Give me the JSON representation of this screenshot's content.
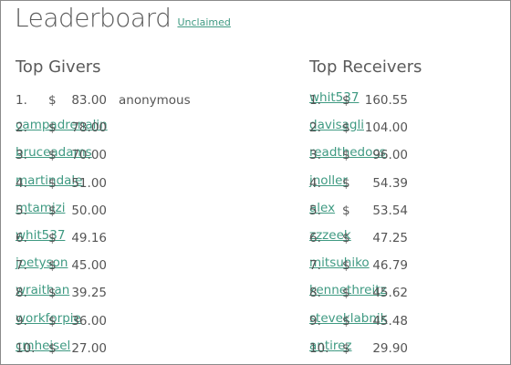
{
  "header": {
    "title": "Leaderboard",
    "unclaimed_label": "Unclaimed"
  },
  "givers": {
    "title": "Top Givers",
    "currency": "$",
    "rows": [
      {
        "rank": "1.",
        "amount": "83.00",
        "name": "anonymous",
        "is_link": false
      },
      {
        "rank": "2.",
        "amount": "78.00",
        "name": "campadrenalin",
        "is_link": true
      },
      {
        "rank": "3.",
        "amount": "70.00",
        "name": "bruceadams",
        "is_link": true
      },
      {
        "rank": "4.",
        "amount": "51.00",
        "name": "martindale",
        "is_link": true
      },
      {
        "rank": "5.",
        "amount": "50.00",
        "name": "mtamizi",
        "is_link": true
      },
      {
        "rank": "6.",
        "amount": "49.16",
        "name": "whit537",
        "is_link": true
      },
      {
        "rank": "7.",
        "amount": "45.00",
        "name": "joetyson",
        "is_link": true
      },
      {
        "rank": "8.",
        "amount": "39.25",
        "name": "wraithan",
        "is_link": true
      },
      {
        "rank": "9.",
        "amount": "36.00",
        "name": "workforpie",
        "is_link": true
      },
      {
        "rank": "10.",
        "amount": "27.00",
        "name": "cmheisel",
        "is_link": true
      }
    ]
  },
  "receivers": {
    "title": "Top Receivers",
    "currency": "$",
    "rows": [
      {
        "rank": "1.",
        "amount": "160.55",
        "name": "whit537",
        "is_link": true
      },
      {
        "rank": "2.",
        "amount": "104.00",
        "name": "davisagli",
        "is_link": true
      },
      {
        "rank": "3.",
        "amount": "96.00",
        "name": "readthedocs",
        "is_link": true
      },
      {
        "rank": "4.",
        "amount": "54.39",
        "name": "jnoller",
        "is_link": true
      },
      {
        "rank": "5.",
        "amount": "53.54",
        "name": "alex",
        "is_link": true
      },
      {
        "rank": "6.",
        "amount": "47.25",
        "name": "zzzeek",
        "is_link": true
      },
      {
        "rank": "7.",
        "amount": "46.79",
        "name": "mitsuhiko",
        "is_link": true
      },
      {
        "rank": "8.",
        "amount": "45.62",
        "name": "kennethreitz",
        "is_link": true
      },
      {
        "rank": "9.",
        "amount": "45.48",
        "name": "steveklabnik",
        "is_link": true
      },
      {
        "rank": "10.",
        "amount": "29.90",
        "name": "antirez",
        "is_link": true
      }
    ]
  },
  "colors": {
    "text": "#555555",
    "link": "#3f9a82",
    "border": "#8a8a8a",
    "background": "#ffffff"
  }
}
